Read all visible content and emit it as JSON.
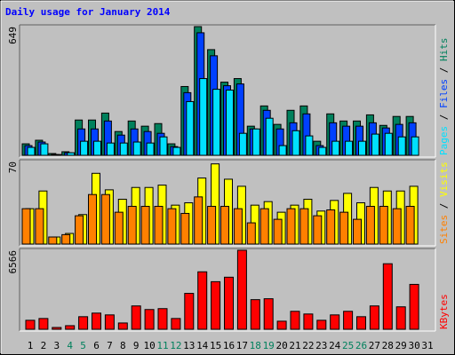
{
  "title": "Daily usage for January 2014",
  "chart_data": [
    {
      "type": "bar",
      "ylim": [
        0,
        649
      ],
      "yticks": [
        649
      ],
      "legend_separator": " / ",
      "series": [
        {
          "name": "Hits",
          "color": "#00805c",
          "values": [
            58,
            76,
            9,
            18,
            178,
            178,
            213,
            120,
            173,
            147,
            160,
            58,
            347,
            649,
            533,
            369,
            387,
            147,
            249,
            156,
            227,
            249,
            71,
            209,
            173,
            173,
            204,
            151,
            196,
            196,
            0
          ]
        },
        {
          "name": "Files",
          "color": "#0040ff",
          "values": [
            49,
            67,
            4,
            13,
            133,
            133,
            173,
            102,
            133,
            120,
            111,
            44,
            316,
            618,
            502,
            351,
            360,
            133,
            227,
            133,
            164,
            209,
            49,
            164,
            147,
            147,
            164,
            138,
            156,
            164,
            0
          ]
        },
        {
          "name": "Pages",
          "color": "#00e0ff",
          "values": [
            40,
            58,
            4,
            13,
            71,
            71,
            62,
            62,
            67,
            62,
            93,
            40,
            271,
            387,
            333,
            329,
            111,
            133,
            187,
            49,
            124,
            98,
            40,
            71,
            71,
            71,
            107,
            111,
            93,
            93,
            0
          ]
        }
      ]
    },
    {
      "type": "bar",
      "ylim": [
        0,
        70
      ],
      "yticks": [
        70
      ],
      "legend_separator": " / ",
      "series": [
        {
          "name": "Visits",
          "color": "#ffff00",
          "values": [
            30,
            45,
            6,
            9,
            25,
            60,
            46,
            38,
            48,
            48,
            50,
            33,
            35,
            56,
            68,
            55,
            49,
            33,
            36,
            27,
            33,
            38,
            28,
            37,
            43,
            35,
            48,
            45,
            45,
            49,
            0
          ]
        },
        {
          "name": "Sites",
          "color": "#ff8000",
          "values": [
            30,
            30,
            6,
            8,
            24,
            42,
            42,
            27,
            32,
            32,
            32,
            30,
            26,
            40,
            32,
            32,
            30,
            18,
            30,
            21,
            30,
            30,
            24,
            29,
            27,
            21,
            32,
            32,
            30,
            32,
            0
          ]
        }
      ]
    },
    {
      "type": "bar",
      "ylim": [
        0,
        6566
      ],
      "yticks": [
        6566
      ],
      "series": [
        {
          "name": "KBytes",
          "color": "#ff0000",
          "values": [
            746,
            895,
            149,
            298,
            1045,
            1343,
            1194,
            522,
            1940,
            1641,
            1716,
            895,
            2984,
            4775,
            3955,
            4328,
            6566,
            2462,
            2537,
            671,
            1492,
            1269,
            746,
            1194,
            1492,
            1045,
            1940,
            5447,
            1865,
            3731,
            0
          ]
        }
      ],
      "categories": [
        "1",
        "2",
        "3",
        "4",
        "5",
        "6",
        "7",
        "8",
        "9",
        "10",
        "11",
        "12",
        "13",
        "14",
        "15",
        "16",
        "17",
        "18",
        "19",
        "20",
        "21",
        "22",
        "23",
        "24",
        "25",
        "26",
        "27",
        "28",
        "29",
        "30",
        "31"
      ],
      "category_colors": [
        "#000000",
        "#000000",
        "#000000",
        "#00805c",
        "#00805c",
        "#000000",
        "#000000",
        "#000000",
        "#000000",
        "#000000",
        "#00805c",
        "#00805c",
        "#000000",
        "#000000",
        "#000000",
        "#000000",
        "#000000",
        "#00805c",
        "#00805c",
        "#000000",
        "#000000",
        "#000000",
        "#000000",
        "#000000",
        "#00805c",
        "#00805c",
        "#000000",
        "#000000",
        "#000000",
        "#000000",
        "#000000"
      ]
    }
  ]
}
